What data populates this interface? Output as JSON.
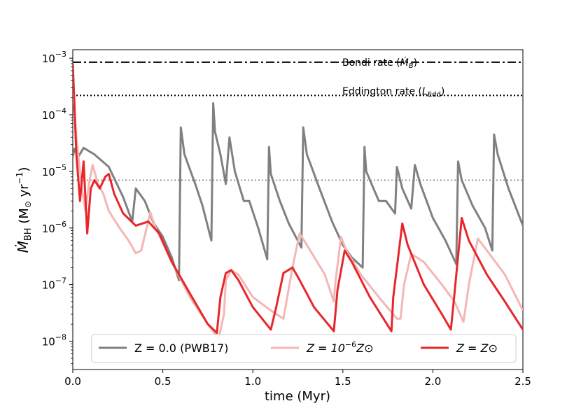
{
  "chart_data": {
    "type": "line",
    "xlabel": "time (Myr)",
    "ylabel": "Ṁ_BH (M⊙ yr⁻¹)",
    "ylabel_parts": {
      "main": "Ṁ",
      "sub": "BH",
      "units_open": " (M",
      "sun": "⊙",
      "units_mid": " yr",
      "exp": "−1",
      "units_close": ")"
    },
    "xlim": [
      0.0,
      2.5
    ],
    "ylim_log10": [
      -8.5,
      -2.85
    ],
    "yscale": "log",
    "xticks": [
      {
        "value": 0.0,
        "label": "0.0"
      },
      {
        "value": 0.5,
        "label": "0.5"
      },
      {
        "value": 1.0,
        "label": "1.0"
      },
      {
        "value": 1.5,
        "label": "1.5"
      },
      {
        "value": 2.0,
        "label": "2.0"
      },
      {
        "value": 2.5,
        "label": "2.5"
      }
    ],
    "yticks": [
      {
        "exp": -3,
        "base": "10",
        "sup": "−3"
      },
      {
        "exp": -4,
        "base": "10",
        "sup": "−4"
      },
      {
        "exp": -5,
        "base": "10",
        "sup": "−5"
      },
      {
        "exp": -6,
        "base": "10",
        "sup": "−6"
      },
      {
        "exp": -7,
        "base": "10",
        "sup": "−7"
      },
      {
        "exp": -8,
        "base": "10",
        "sup": "−8"
      }
    ],
    "reference_lines": [
      {
        "name": "bondi",
        "value": 0.00085,
        "style": "dashdot",
        "label_text": "Bondi rate (",
        "label_symbol": "Ṁ",
        "label_sub": "B",
        "label_end": ")"
      },
      {
        "name": "eddington",
        "value": 0.00022,
        "style": "dotted-black",
        "label_text": "Eddington rate (",
        "label_symbol": "L",
        "label_sub": "Edd",
        "label_end": ")"
      },
      {
        "name": "reference-gray",
        "value": 7e-06,
        "style": "dotted-gray"
      }
    ],
    "series": [
      {
        "name": "Z = 0.0 (PWB17)",
        "color": "#808080",
        "points": [
          [
            0.0,
            1.8e-05
          ],
          [
            0.01,
            2.5e-05
          ],
          [
            0.03,
            1.8e-05
          ],
          [
            0.06,
            2.6e-05
          ],
          [
            0.12,
            2e-05
          ],
          [
            0.2,
            1.2e-05
          ],
          [
            0.28,
            3.5e-06
          ],
          [
            0.33,
            1.3e-06
          ],
          [
            0.35,
            5e-06
          ],
          [
            0.4,
            3e-06
          ],
          [
            0.45,
            1.2e-06
          ],
          [
            0.5,
            7e-07
          ],
          [
            0.55,
            3e-07
          ],
          [
            0.59,
            1.2e-07
          ],
          [
            0.6,
            6e-05
          ],
          [
            0.62,
            2e-05
          ],
          [
            0.68,
            6e-06
          ],
          [
            0.72,
            2.5e-06
          ],
          [
            0.77,
            6e-07
          ],
          [
            0.78,
            0.00016
          ],
          [
            0.79,
            5e-05
          ],
          [
            0.82,
            2e-05
          ],
          [
            0.85,
            6e-06
          ],
          [
            0.87,
            4e-05
          ],
          [
            0.9,
            1e-05
          ],
          [
            0.95,
            3e-06
          ],
          [
            0.98,
            3e-06
          ],
          [
            1.03,
            1e-06
          ],
          [
            1.08,
            2.8e-07
          ],
          [
            1.09,
            2.7e-05
          ],
          [
            1.1,
            9e-06
          ],
          [
            1.15,
            3e-06
          ],
          [
            1.2,
            1.2e-06
          ],
          [
            1.27,
            4.5e-07
          ],
          [
            1.28,
            6e-05
          ],
          [
            1.3,
            2e-05
          ],
          [
            1.37,
            5e-06
          ],
          [
            1.44,
            1.3e-06
          ],
          [
            1.5,
            5e-07
          ],
          [
            1.55,
            3e-07
          ],
          [
            1.61,
            2e-07
          ],
          [
            1.62,
            2.7e-05
          ],
          [
            1.63,
            1e-05
          ],
          [
            1.7,
            3e-06
          ],
          [
            1.74,
            3e-06
          ],
          [
            1.79,
            1.8e-06
          ],
          [
            1.8,
            1.2e-05
          ],
          [
            1.83,
            5e-06
          ],
          [
            1.88,
            2.2e-06
          ],
          [
            1.9,
            1.3e-05
          ],
          [
            1.93,
            6e-06
          ],
          [
            2.0,
            1.5e-06
          ],
          [
            2.07,
            6e-07
          ],
          [
            2.13,
            2.3e-07
          ],
          [
            2.14,
            1.5e-05
          ],
          [
            2.16,
            7e-06
          ],
          [
            2.22,
            2.5e-06
          ],
          [
            2.29,
            1e-06
          ],
          [
            2.33,
            4e-07
          ],
          [
            2.34,
            4.5e-05
          ],
          [
            2.36,
            2e-05
          ],
          [
            2.42,
            5e-06
          ],
          [
            2.5,
            1.1e-06
          ]
        ]
      },
      {
        "name": "Z = 10⁻⁶ Z⊙",
        "color": "#f4b6b6",
        "points": [
          [
            0.0,
            0.0003
          ],
          [
            0.02,
            4e-05
          ],
          [
            0.05,
            5e-06
          ],
          [
            0.07,
            2e-06
          ],
          [
            0.09,
            6e-06
          ],
          [
            0.11,
            1.3e-05
          ],
          [
            0.14,
            6e-06
          ],
          [
            0.17,
            4e-06
          ],
          [
            0.2,
            2e-06
          ],
          [
            0.26,
            1e-06
          ],
          [
            0.31,
            6e-07
          ],
          [
            0.35,
            3.6e-07
          ],
          [
            0.38,
            4e-07
          ],
          [
            0.41,
            1e-06
          ],
          [
            0.43,
            1.9e-06
          ],
          [
            0.46,
            1e-06
          ],
          [
            0.55,
            2.5e-07
          ],
          [
            0.65,
            6e-08
          ],
          [
            0.75,
            2e-08
          ],
          [
            0.81,
            1.1e-08
          ],
          [
            0.84,
            3e-08
          ],
          [
            0.85,
            1.2e-07
          ],
          [
            0.88,
            1.8e-07
          ],
          [
            0.92,
            1.5e-07
          ],
          [
            1.0,
            6e-08
          ],
          [
            1.1,
            3.5e-08
          ],
          [
            1.17,
            2.5e-08
          ],
          [
            1.22,
            2e-07
          ],
          [
            1.26,
            8e-07
          ],
          [
            1.3,
            5e-07
          ],
          [
            1.4,
            1.5e-07
          ],
          [
            1.45,
            5e-08
          ],
          [
            1.46,
            1.2e-07
          ],
          [
            1.49,
            7e-07
          ],
          [
            1.52,
            4e-07
          ],
          [
            1.6,
            1.5e-07
          ],
          [
            1.7,
            6e-08
          ],
          [
            1.8,
            2.5e-08
          ],
          [
            1.82,
            2.5e-08
          ],
          [
            1.84,
            1e-07
          ],
          [
            1.88,
            3.5e-07
          ],
          [
            1.95,
            2.5e-07
          ],
          [
            2.05,
            1e-07
          ],
          [
            2.12,
            5e-08
          ],
          [
            2.17,
            2.2e-08
          ],
          [
            2.2,
            1e-07
          ],
          [
            2.25,
            6.5e-07
          ],
          [
            2.3,
            4e-07
          ],
          [
            2.4,
            1.5e-07
          ],
          [
            2.5,
            3.5e-08
          ]
        ]
      },
      {
        "name": "Z = Z⊙",
        "color": "#e8262a",
        "points": [
          [
            0.0,
            0.0008
          ],
          [
            0.02,
            2e-05
          ],
          [
            0.04,
            3e-06
          ],
          [
            0.06,
            1.5e-05
          ],
          [
            0.08,
            8e-07
          ],
          [
            0.1,
            5e-06
          ],
          [
            0.12,
            7e-06
          ],
          [
            0.15,
            5e-06
          ],
          [
            0.18,
            8e-06
          ],
          [
            0.2,
            9e-06
          ],
          [
            0.23,
            4e-06
          ],
          [
            0.28,
            1.8e-06
          ],
          [
            0.35,
            1.1e-06
          ],
          [
            0.42,
            1.3e-06
          ],
          [
            0.48,
            8e-07
          ],
          [
            0.55,
            2.5e-07
          ],
          [
            0.65,
            7e-08
          ],
          [
            0.75,
            2e-08
          ],
          [
            0.8,
            1.4e-08
          ],
          [
            0.82,
            6e-08
          ],
          [
            0.85,
            1.6e-07
          ],
          [
            0.88,
            1.8e-07
          ],
          [
            0.92,
            1.2e-07
          ],
          [
            1.0,
            4e-08
          ],
          [
            1.1,
            1.6e-08
          ],
          [
            1.13,
            4e-08
          ],
          [
            1.17,
            1.6e-07
          ],
          [
            1.22,
            2e-07
          ],
          [
            1.26,
            1.2e-07
          ],
          [
            1.34,
            4e-08
          ],
          [
            1.45,
            1.5e-08
          ],
          [
            1.47,
            8e-08
          ],
          [
            1.51,
            4e-07
          ],
          [
            1.55,
            2.5e-07
          ],
          [
            1.65,
            6e-08
          ],
          [
            1.77,
            1.5e-08
          ],
          [
            1.78,
            6e-08
          ],
          [
            1.83,
            1.2e-06
          ],
          [
            1.86,
            5e-07
          ],
          [
            1.95,
            1e-07
          ],
          [
            2.05,
            3e-08
          ],
          [
            2.1,
            1.6e-08
          ],
          [
            2.12,
            7e-08
          ],
          [
            2.16,
            1.5e-06
          ],
          [
            2.2,
            6e-07
          ],
          [
            2.3,
            1.5e-07
          ],
          [
            2.4,
            5e-08
          ],
          [
            2.5,
            1.6e-08
          ]
        ]
      }
    ],
    "legend": [
      {
        "name": "Z = 0.0 (PWB17)",
        "color": "#808080",
        "text": "Z = 0.0 (PWB17)"
      },
      {
        "name": "Z = 10⁻⁶ Z⊙",
        "color": "#f4b6b6",
        "pre": "Z = 10",
        "sup": "−6",
        "post": "Z⊙"
      },
      {
        "name": "Z = Z⊙",
        "color": "#e8262a",
        "text": "Z = Z⊙"
      }
    ],
    "legend_position": "bottom"
  }
}
